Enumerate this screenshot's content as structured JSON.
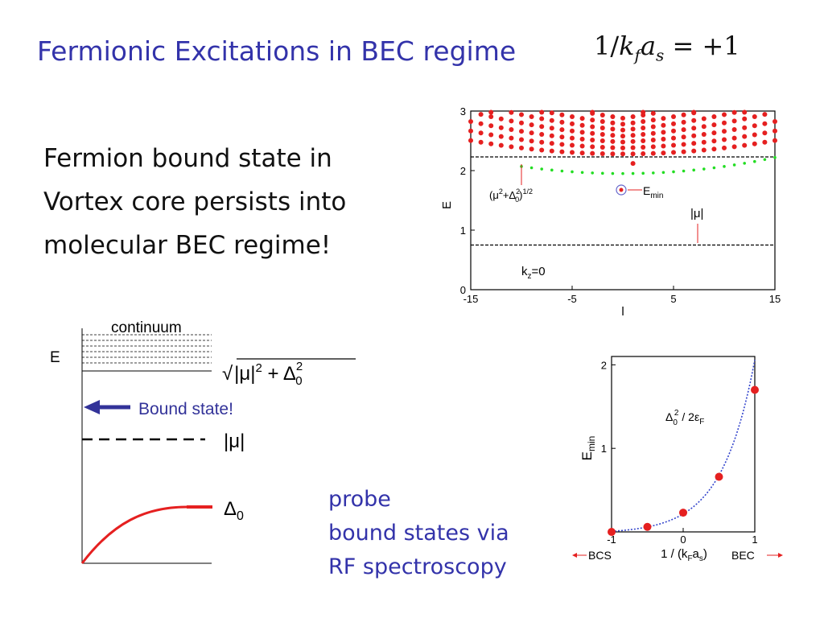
{
  "title": {
    "text": "Fermionic Excitations in BEC regime",
    "equation": "1/k_f a_s = +1",
    "eq_parts": {
      "num": "1/",
      "k": "k",
      "k_sub": "f",
      "a": "a",
      "a_sub": "s",
      "rest": " = +1"
    }
  },
  "main_text": {
    "lines": [
      "Fermion bound state in",
      "Vortex core persists into",
      "molecular BEC regime!"
    ]
  },
  "probe_text": {
    "lines": [
      "probe",
      "bound states via",
      "RF spectroscopy"
    ]
  },
  "colors": {
    "title": "#3333aa",
    "accent_blue": "#333399",
    "red": "#e52020",
    "green": "#22dd22",
    "fit_blue": "#3344cc"
  },
  "diagram": {
    "continuum_label": "continuum",
    "e_label": "E",
    "sqrt_label": "√(|μ|² + Δ₀²)",
    "sqrt_parts": {
      "radical": "√",
      "mu": "|μ|",
      "sq": "2",
      "plus": " + Δ",
      "sub": "0",
      "sup": "2"
    },
    "bound_state_label": "Bound state!",
    "mu_label": "|μ|",
    "delta_label": "Δ₀",
    "delta_parts": {
      "delta": "Δ",
      "sub": "0"
    }
  },
  "chart_data": [
    {
      "type": "scatter",
      "title": "",
      "xlabel": "l",
      "ylabel": "E",
      "xlim": [
        -15,
        15
      ],
      "ylim": [
        0,
        3
      ],
      "x_ticks": [
        "-15",
        "-5",
        "5",
        "15"
      ],
      "y_ticks": [
        "0",
        "1",
        "2",
        "3"
      ],
      "reference_lines": [
        {
          "name": "(μ²+Δ₀²)^1/2",
          "y": 2.23,
          "style": "dashed"
        },
        {
          "name": "|μ|",
          "y": 0.75,
          "style": "dashed"
        }
      ],
      "series": [
        {
          "name": "",
          "color": "red",
          "description": "continuum states",
          "y_range": [
            2.1,
            3.0
          ]
        },
        {
          "name": "",
          "color": "green",
          "description": "bound states",
          "min": 1.95,
          "max": 2.22
        }
      ],
      "annotations": [
        {
          "text": "(μ²+Δ₀²)^1/2",
          "parts": {
            "open": "(μ",
            "s1": "2",
            "plus": "+Δ",
            "sub0": "0",
            "s2": "2",
            "close": ")",
            "s3": "1/2"
          }
        },
        {
          "text": "E_min",
          "parts": {
            "E": "E",
            "sub": "min"
          }
        },
        {
          "text": "|μ|"
        },
        {
          "text": "k_z=0",
          "parts": {
            "k": "k",
            "sub": "z",
            "rest": "=0"
          }
        }
      ]
    },
    {
      "type": "scatter",
      "title": "",
      "xlabel": "1 / (k_F a_s)",
      "xlabel_parts": {
        "pre": "1 / (k",
        "sub1": "F",
        "mid": "a",
        "sub2": "s",
        "post": ")"
      },
      "ylabel": "E_min",
      "ylabel_parts": {
        "E": "E",
        "sub": "min"
      },
      "xlim": [
        -1,
        1
      ],
      "ylim": [
        0,
        2.1
      ],
      "x_ticks": [
        "-1",
        "0",
        "1"
      ],
      "y_ticks": [
        "1",
        "2"
      ],
      "x_bottom_labels": [
        "BCS",
        "BEC"
      ],
      "points": {
        "x": [
          -1.0,
          -0.5,
          0.0,
          0.5,
          1.0
        ],
        "y": [
          0.0,
          0.06,
          0.23,
          0.66,
          1.7
        ]
      },
      "fit": {
        "name": "Δ₀² / 2ε_F",
        "parts": {
          "D": "Δ",
          "sub0": "0",
          "sup2": "2",
          "mid": " / 2ε",
          "subF": "F"
        },
        "style": "dotted"
      }
    }
  ]
}
